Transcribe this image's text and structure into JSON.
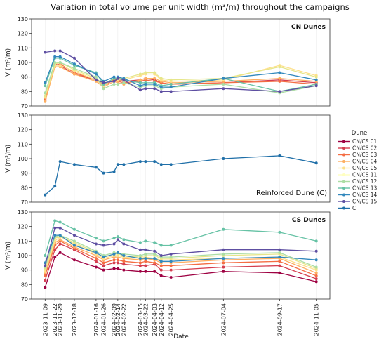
{
  "chart_data": {
    "type": "line",
    "title": "Variation in total volume per unit width (m³/m) throughout the campaigns",
    "xlabel": "Date",
    "x_dates": [
      "2023-11-09",
      "2023-11-22",
      "2023-11-29",
      "2023-12-18",
      "2024-01-16",
      "2024-01-26",
      "2024-02-09",
      "2024-02-14",
      "2024-02-22",
      "2024-03-15",
      "2024-03-22",
      "2024-04-03",
      "2024-04-12",
      "2024-04-25",
      "2024-07-04",
      "2024-09-17",
      "2024-11-05"
    ],
    "legend": {
      "title": "Dune",
      "entries": [
        {
          "name": "CN/CS 01",
          "color": "#9e0142"
        },
        {
          "name": "CN/CS 02",
          "color": "#d53e4f"
        },
        {
          "name": "CN/CS 03",
          "color": "#f46d43"
        },
        {
          "name": "CN/CS 04",
          "color": "#fdae61"
        },
        {
          "name": "CN/CS 05",
          "color": "#fee08b"
        },
        {
          "name": "CN/CS 11",
          "color": "#ffffbf"
        },
        {
          "name": "CN/CS 12",
          "color": "#abdda4"
        },
        {
          "name": "CN/CS 13",
          "color": "#66c2a5"
        },
        {
          "name": "CN/CS 14",
          "color": "#3288bd"
        },
        {
          "name": "CN/CS 15",
          "color": "#5e4fa2"
        },
        {
          "name": "C",
          "color": "#1f6fa8"
        }
      ]
    },
    "panels": [
      {
        "label": "CN Dunes",
        "ylabel": "V (m³/m)",
        "ylim": [
          70,
          130
        ],
        "yticks": [
          70,
          80,
          90,
          100,
          110,
          120,
          130
        ],
        "series": [
          {
            "name": "CN/CS 01",
            "color": "#9e0142",
            "values": [
              null,
              null,
              null,
              null,
              null,
              null,
              null,
              null,
              null,
              null,
              null,
              null,
              null,
              null,
              null,
              null,
              null
            ]
          },
          {
            "name": "CN/CS 02",
            "color": "#d53e4f",
            "values": [
              74,
              99,
              98,
              92,
              88,
              85,
              88,
              88,
              87,
              88,
              89,
              88,
              86,
              85,
              86,
              88,
              86
            ]
          },
          {
            "name": "CN/CS 03",
            "color": "#f46d43",
            "values": [
              75,
              98,
              99,
              93,
              88,
              84,
              88,
              87,
              86,
              87,
              88,
              87,
              86,
              85,
              86,
              87,
              85
            ]
          },
          {
            "name": "CN/CS 04",
            "color": "#fdae61",
            "values": [
              73,
              97,
              97,
              92,
              87,
              83,
              87,
              86,
              85,
              88,
              89,
              89,
              87,
              86,
              87,
              89,
              87
            ]
          },
          {
            "name": "CN/CS 05",
            "color": "#fee08b",
            "values": [
              76,
              98,
              98,
              94,
              88,
              84,
              89,
              88,
              88,
              91,
              92,
              92,
              88,
              87,
              88,
              98,
              91
            ]
          },
          {
            "name": "CN/CS 11",
            "color": "#e6e68a",
            "values": [
              77,
              99,
              100,
              95,
              89,
              85,
              89,
              89,
              89,
              92,
              93,
              93,
              89,
              88,
              89,
              97,
              90
            ]
          },
          {
            "name": "CN/CS 12",
            "color": "#abdda4",
            "values": [
              79,
              100,
              100,
              96,
              90,
              82,
              85,
              85,
              86,
              83,
              84,
              84,
              82,
              83,
              85,
              79,
              84
            ]
          },
          {
            "name": "CN/CS 13",
            "color": "#66c2a5",
            "values": [
              84,
              103,
              103,
              98,
              93,
              85,
              89,
              89,
              88,
              86,
              86,
              86,
              84,
              85,
              89,
              80,
              85
            ]
          },
          {
            "name": "CN/CS 14",
            "color": "#3288bd",
            "values": [
              86,
              104,
              104,
              99,
              92,
              87,
              90,
              90,
              89,
              84,
              85,
              85,
              83,
              83,
              89,
              93,
              88
            ]
          },
          {
            "name": "CN/CS 15",
            "color": "#5e4fa2",
            "values": [
              107,
              108,
              108,
              103,
              88,
              86,
              87,
              89,
              88,
              81,
              82,
              82,
              80,
              80,
              82,
              80,
              84
            ]
          }
        ]
      },
      {
        "label": "Reinforced Dune (C)",
        "ylabel": "V (m³/m)",
        "ylim": [
          70,
          130
        ],
        "yticks": [
          70,
          80,
          90,
          100,
          110,
          120,
          130
        ],
        "series": [
          {
            "name": "C",
            "color": "#1f6fa8",
            "values": [
              75,
              81,
              98,
              96,
              94,
              90,
              91,
              96,
              96,
              98,
              98,
              98,
              96,
              96,
              100,
              102,
              97
            ]
          }
        ]
      },
      {
        "label": "CS Dunes",
        "ylabel": "V (m³/m)",
        "ylim": [
          70,
          130
        ],
        "yticks": [
          70,
          80,
          90,
          100,
          110,
          120,
          130
        ],
        "series": [
          {
            "name": "CN/CS 01",
            "color": "#9e0142",
            "values": [
              78,
              99,
              102,
              97,
              92,
              90,
              91,
              91,
              90,
              89,
              89,
              89,
              86,
              85,
              89,
              88,
              82
            ]
          },
          {
            "name": "CN/CS 02",
            "color": "#d53e4f",
            "values": [
              83,
              104,
              108,
              104,
              96,
              93,
              95,
              95,
              94,
              93,
              93,
              94,
              90,
              90,
              92,
              93,
              84
            ]
          },
          {
            "name": "CN/CS 03",
            "color": "#f46d43",
            "values": [
              86,
              107,
              110,
              105,
              98,
              95,
              97,
              97,
              96,
              95,
              96,
              95,
              93,
              93,
              95,
              96,
              86
            ]
          },
          {
            "name": "CN/CS 04",
            "color": "#fdae61",
            "values": [
              88,
              109,
              111,
              106,
              100,
              97,
              99,
              99,
              98,
              97,
              98,
              97,
              95,
              95,
              97,
              98,
              88
            ]
          },
          {
            "name": "CN/CS 05",
            "color": "#fee08b",
            "values": [
              89,
              110,
              113,
              108,
              101,
              98,
              100,
              100,
              99,
              98,
              99,
              98,
              97,
              97,
              98,
              99,
              90
            ]
          },
          {
            "name": "CN/CS 11",
            "color": "#e6e68a",
            "values": [
              91,
              112,
              113,
              109,
              102,
              99,
              101,
              101,
              100,
              99,
              100,
              100,
              98,
              98,
              100,
              101,
              91
            ]
          },
          {
            "name": "CN/CS 12",
            "color": "#abdda4",
            "values": [
              92,
              113,
              114,
              110,
              103,
              100,
              102,
              102,
              101,
              100,
              101,
              101,
              99,
              99,
              101,
              102,
              92
            ]
          },
          {
            "name": "CN/CS 13",
            "color": "#66c2a5",
            "values": [
              100,
              124,
              123,
              118,
              112,
              110,
              112,
              113,
              111,
              109,
              110,
              109,
              107,
              107,
              118,
              116,
              110
            ]
          },
          {
            "name": "CN/CS 14",
            "color": "#3288bd",
            "values": [
              95,
              114,
              114,
              107,
              102,
              99,
              101,
              102,
              100,
              98,
              98,
              98,
              96,
              96,
              98,
              99,
              97
            ]
          },
          {
            "name": "CN/CS 15",
            "color": "#5e4fa2",
            "values": [
              93,
              119,
              119,
              114,
              108,
              107,
              108,
              111,
              108,
              104,
              104,
              103,
              100,
              101,
              104,
              104,
              103
            ]
          }
        ]
      }
    ]
  }
}
